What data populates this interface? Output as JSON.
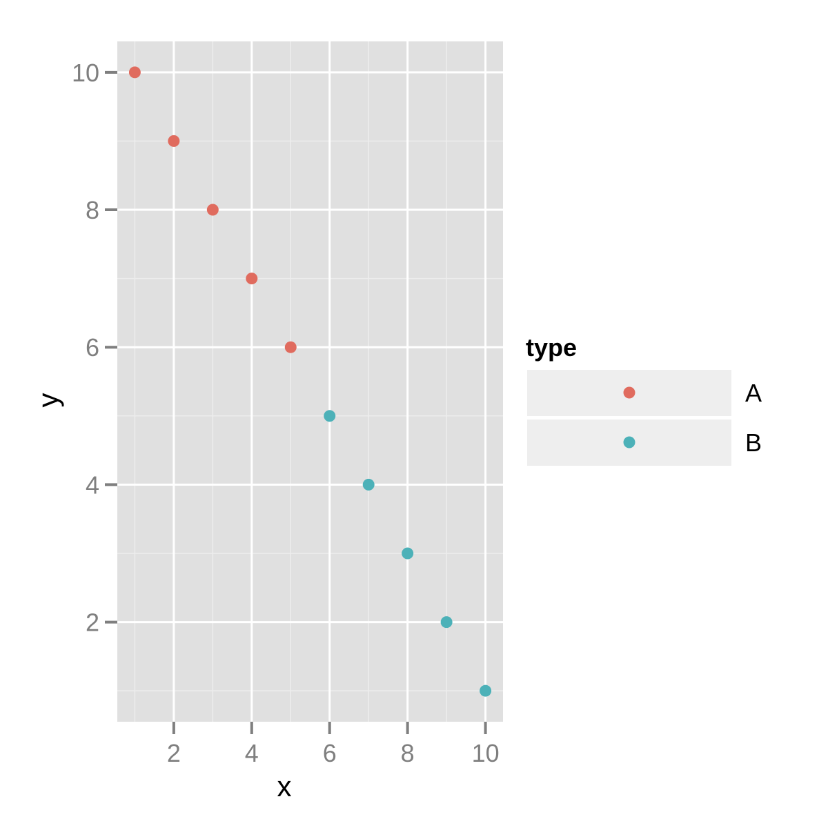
{
  "chart_data": {
    "type": "scatter",
    "title": "",
    "xlabel": "x",
    "ylabel": "y",
    "xlim": [
      0.55,
      10.45
    ],
    "ylim": [
      0.55,
      10.45
    ],
    "xticks": [
      2,
      4,
      6,
      8,
      10
    ],
    "yticks": [
      2,
      4,
      6,
      8,
      10
    ],
    "xtick_labels": [
      "2",
      "4",
      "6",
      "8",
      "10"
    ],
    "ytick_labels": [
      "2",
      "4",
      "6",
      "8",
      "10"
    ],
    "grid": true,
    "legend": {
      "title": "type",
      "placement": "right"
    },
    "series": [
      {
        "name": "A",
        "color": "#e06b5e",
        "x": [
          1,
          2,
          3,
          4,
          5
        ],
        "y": [
          10,
          9,
          8,
          7,
          6
        ]
      },
      {
        "name": "B",
        "color": "#4cb1b8",
        "x": [
          6,
          7,
          8,
          9,
          10
        ],
        "y": [
          5,
          4,
          3,
          2,
          1
        ]
      }
    ]
  }
}
